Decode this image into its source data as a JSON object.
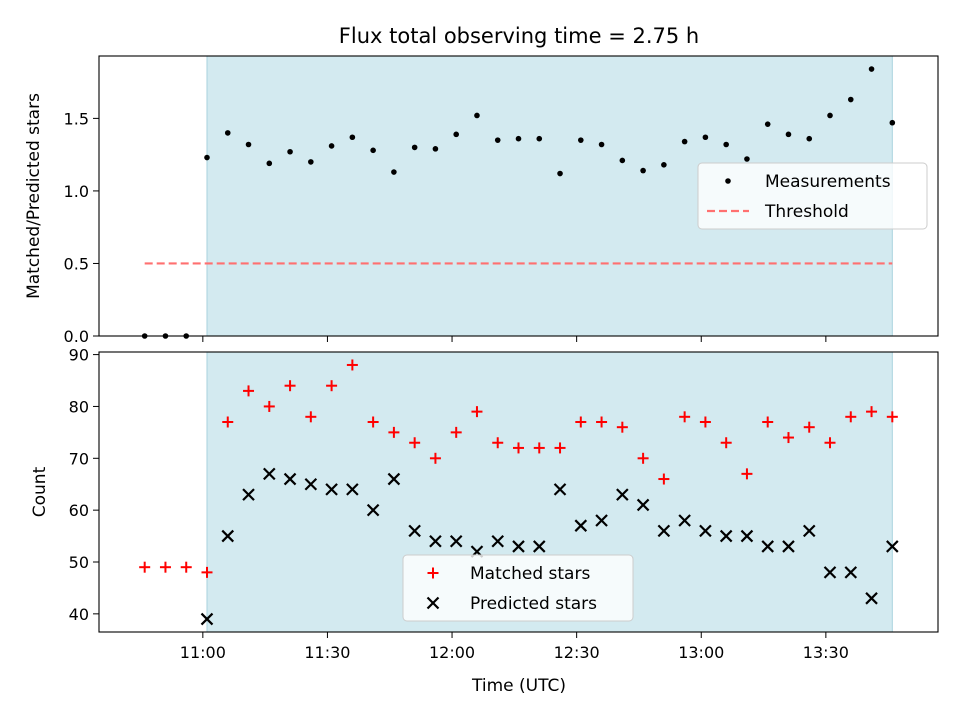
{
  "figure": {
    "title": "Flux total observing time = 2.75 h",
    "xlabel": "Time (UTC)"
  },
  "colors": {
    "highlight": "#d3eaf0",
    "highlight_edge": "#a9d3de",
    "threshold": "#ff7070",
    "matched": "#ff0000",
    "predicted": "#000000",
    "measurement": "#000000"
  },
  "chart_data": [
    {
      "type": "scatter",
      "ylabel": "Matched/Predicted stars",
      "x_unit": "time (UTC)",
      "xlim": [
        "10:35",
        "13:57"
      ],
      "ylim": [
        0,
        1.93
      ],
      "yticks": [
        "0.0",
        "0.5",
        "1.0",
        "1.5"
      ],
      "highlight_span": [
        "11:01",
        "13:46"
      ],
      "legend_position": "right",
      "series": [
        {
          "name": "Measurements",
          "marker": "dot",
          "x": [
            "10:46",
            "10:51",
            "10:56",
            "11:01",
            "11:06",
            "11:11",
            "11:16",
            "11:21",
            "11:26",
            "11:31",
            "11:36",
            "11:41",
            "11:46",
            "11:51",
            "11:56",
            "12:01",
            "12:06",
            "12:11",
            "12:16",
            "12:21",
            "12:26",
            "12:31",
            "12:36",
            "12:41",
            "12:46",
            "12:51",
            "12:56",
            "13:01",
            "13:06",
            "13:11",
            "13:16",
            "13:21",
            "13:26",
            "13:31",
            "13:36",
            "13:41",
            "13:46"
          ],
          "y": [
            0,
            0,
            0,
            1.23,
            1.4,
            1.32,
            1.19,
            1.27,
            1.2,
            1.31,
            1.37,
            1.28,
            1.13,
            1.3,
            1.29,
            1.39,
            1.52,
            1.35,
            1.36,
            1.36,
            1.12,
            1.35,
            1.32,
            1.21,
            1.14,
            1.18,
            1.34,
            1.37,
            1.32,
            1.22,
            1.46,
            1.39,
            1.36,
            1.52,
            1.63,
            1.84,
            1.47
          ]
        },
        {
          "name": "Threshold",
          "style": "dashed",
          "x": [
            "10:46",
            "13:46"
          ],
          "y": [
            0.5,
            0.5
          ]
        }
      ]
    },
    {
      "type": "scatter",
      "ylabel": "Count",
      "xlabel": "Time (UTC)",
      "x_unit": "time (UTC)",
      "xlim": [
        "10:35",
        "13:57"
      ],
      "ylim": [
        36.5,
        90.5
      ],
      "yticks": [
        "40",
        "50",
        "60",
        "70",
        "80",
        "90"
      ],
      "xticks": [
        "11:00",
        "11:30",
        "12:00",
        "12:30",
        "13:00",
        "13:30"
      ],
      "highlight_span": [
        "11:01",
        "13:46"
      ],
      "legend_position": "bottom-center",
      "series": [
        {
          "name": "Matched stars",
          "marker": "plus",
          "x": [
            "10:46",
            "10:51",
            "10:56",
            "11:01",
            "11:06",
            "11:11",
            "11:16",
            "11:21",
            "11:26",
            "11:31",
            "11:36",
            "11:41",
            "11:46",
            "11:51",
            "11:56",
            "12:01",
            "12:06",
            "12:11",
            "12:16",
            "12:21",
            "12:26",
            "12:31",
            "12:36",
            "12:41",
            "12:46",
            "12:51",
            "12:56",
            "13:01",
            "13:06",
            "13:11",
            "13:16",
            "13:21",
            "13:26",
            "13:31",
            "13:36",
            "13:41",
            "13:46"
          ],
          "y": [
            49,
            49,
            49,
            48,
            77,
            83,
            80,
            84,
            78,
            84,
            88,
            77,
            75,
            73,
            70,
            75,
            79,
            73,
            72,
            72,
            72,
            77,
            77,
            76,
            70,
            66,
            78,
            77,
            73,
            67,
            77,
            74,
            76,
            73,
            78,
            79,
            78
          ]
        },
        {
          "name": "Predicted stars",
          "marker": "x",
          "x": [
            "11:01",
            "11:06",
            "11:11",
            "11:16",
            "11:21",
            "11:26",
            "11:31",
            "11:36",
            "11:41",
            "11:46",
            "11:51",
            "11:56",
            "12:01",
            "12:06",
            "12:11",
            "12:16",
            "12:21",
            "12:26",
            "12:31",
            "12:36",
            "12:41",
            "12:46",
            "12:51",
            "12:56",
            "13:01",
            "13:06",
            "13:11",
            "13:16",
            "13:21",
            "13:26",
            "13:31",
            "13:36",
            "13:41",
            "13:46"
          ],
          "y": [
            39,
            55,
            63,
            67,
            66,
            65,
            64,
            64,
            60,
            66,
            56,
            54,
            54,
            52,
            54,
            53,
            53,
            64,
            57,
            58,
            63,
            61,
            56,
            58,
            56,
            55,
            55,
            53,
            53,
            56,
            48,
            48,
            43,
            53
          ]
        }
      ]
    }
  ]
}
